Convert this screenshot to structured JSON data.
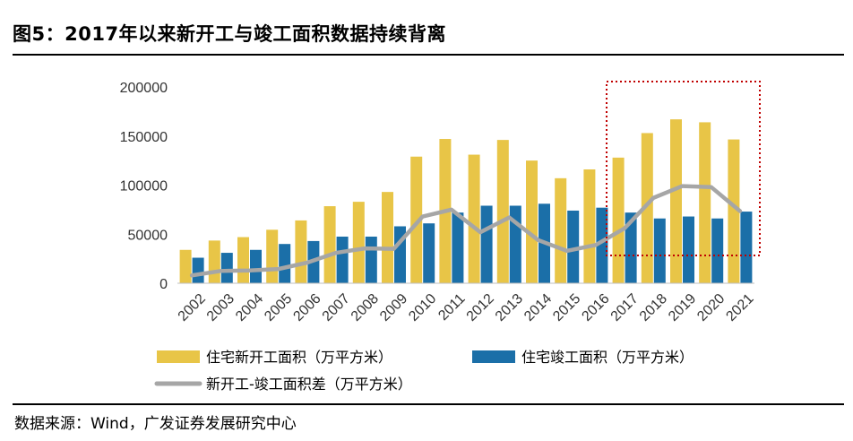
{
  "title": "图5：2017年以来新开工与竣工面积数据持续背离",
  "source": "数据来源：Wind，广发证券发展研究中心",
  "colors": {
    "new_start": "#E8C547",
    "completion": "#1B6FA8",
    "gap": "#A6A6A6",
    "highlight_box": "#C00000"
  },
  "chart_data": {
    "type": "bar",
    "categories": [
      "2002",
      "2003",
      "2004",
      "2005",
      "2006",
      "2007",
      "2008",
      "2009",
      "2010",
      "2011",
      "2012",
      "2013",
      "2014",
      "2015",
      "2016",
      "2017",
      "2018",
      "2019",
      "2020",
      "2021"
    ],
    "ylim": [
      0,
      200000
    ],
    "yticks": [
      0,
      50000,
      100000,
      150000,
      200000
    ],
    "ytick_labels": [
      "0",
      "50000",
      "100000",
      "150000",
      "200000"
    ],
    "grid": false,
    "legend_position": "bottom",
    "highlight": {
      "from": "2017",
      "to": "2021"
    },
    "series": [
      {
        "name": "住宅新开工面积（万平方米）",
        "type": "bar",
        "values": [
          34000,
          43500,
          47000,
          54500,
          64000,
          78500,
          83000,
          93000,
          129000,
          147000,
          131000,
          146000,
          125000,
          107000,
          116000,
          128000,
          153000,
          167000,
          164000,
          146500
        ]
      },
      {
        "name": "住宅竣工面积（万平方米）",
        "type": "bar",
        "values": [
          26000,
          31000,
          34000,
          40000,
          43000,
          47500,
          47500,
          58000,
          61000,
          72000,
          79000,
          79000,
          81000,
          74000,
          77000,
          72000,
          66000,
          68000,
          66000,
          73000
        ]
      },
      {
        "name": "新开工-竣工面积差（万平方米）",
        "type": "line",
        "values": [
          8000,
          12500,
          13000,
          14500,
          21000,
          31000,
          35500,
          35000,
          68000,
          75000,
          52000,
          67000,
          44000,
          33000,
          39000,
          56000,
          87000,
          99000,
          98000,
          73500
        ]
      }
    ]
  }
}
